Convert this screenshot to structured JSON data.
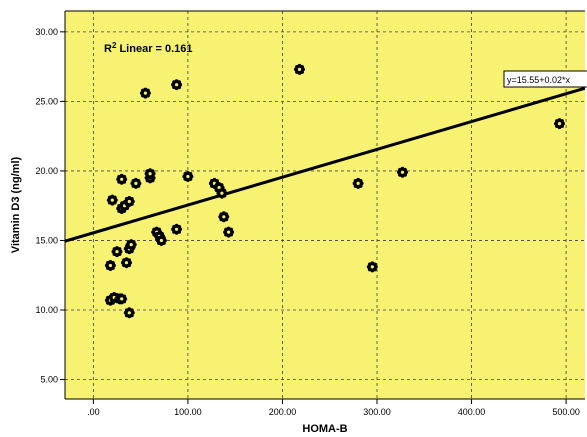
{
  "chart_data": {
    "type": "scatter",
    "xlabel": "HOMA-B",
    "ylabel": "Vitamin D3 (ng/ml)",
    "xlim": [
      -30,
      520
    ],
    "ylim": [
      3.6,
      31.5
    ],
    "x_ticks": [
      0,
      100,
      200,
      300,
      400,
      500
    ],
    "x_tick_labels": [
      ".00",
      "100.00",
      "200.00",
      "300.00",
      "400.00",
      "500.00"
    ],
    "y_ticks": [
      5,
      10,
      15,
      20,
      25,
      30
    ],
    "y_tick_labels": [
      "5.00",
      "10.00",
      "15.00",
      "20.00",
      "25.00",
      "30.00"
    ],
    "grid": true,
    "background_color": "#f8f272",
    "marker": "asterisk",
    "points": [
      {
        "x": 18,
        "y": 10.7
      },
      {
        "x": 22,
        "y": 10.9
      },
      {
        "x": 28,
        "y": 10.8
      },
      {
        "x": 30,
        "y": 10.8
      },
      {
        "x": 38,
        "y": 9.8
      },
      {
        "x": 18,
        "y": 13.2
      },
      {
        "x": 25,
        "y": 14.2
      },
      {
        "x": 35,
        "y": 13.4
      },
      {
        "x": 38,
        "y": 14.4
      },
      {
        "x": 40,
        "y": 14.7
      },
      {
        "x": 20,
        "y": 17.9
      },
      {
        "x": 30,
        "y": 17.3
      },
      {
        "x": 33,
        "y": 17.5
      },
      {
        "x": 38,
        "y": 17.8
      },
      {
        "x": 30,
        "y": 19.4
      },
      {
        "x": 45,
        "y": 19.1
      },
      {
        "x": 55,
        "y": 25.6
      },
      {
        "x": 60,
        "y": 19.5
      },
      {
        "x": 60,
        "y": 19.8
      },
      {
        "x": 67,
        "y": 15.6
      },
      {
        "x": 70,
        "y": 15.3
      },
      {
        "x": 72,
        "y": 15.0
      },
      {
        "x": 88,
        "y": 15.8
      },
      {
        "x": 88,
        "y": 26.2
      },
      {
        "x": 100,
        "y": 19.6
      },
      {
        "x": 128,
        "y": 19.1
      },
      {
        "x": 133,
        "y": 18.8
      },
      {
        "x": 136,
        "y": 18.4
      },
      {
        "x": 138,
        "y": 16.7
      },
      {
        "x": 143,
        "y": 15.6
      },
      {
        "x": 218,
        "y": 27.3
      },
      {
        "x": 280,
        "y": 19.1
      },
      {
        "x": 295,
        "y": 13.1
      },
      {
        "x": 327,
        "y": 19.9
      },
      {
        "x": 493,
        "y": 23.4
      }
    ],
    "fit_line": {
      "intercept": 15.55,
      "slope": 0.02
    },
    "annotations": {
      "r2_prefix": "R",
      "r2_sup": "2",
      "r2_suffix": " Linear = 0.161",
      "equation": "y=15.55+0.02*x"
    }
  },
  "colors": {
    "plot_background": "#f8f272",
    "gridline": "#404040",
    "fit_line": "#000000",
    "marker": "#000000"
  }
}
